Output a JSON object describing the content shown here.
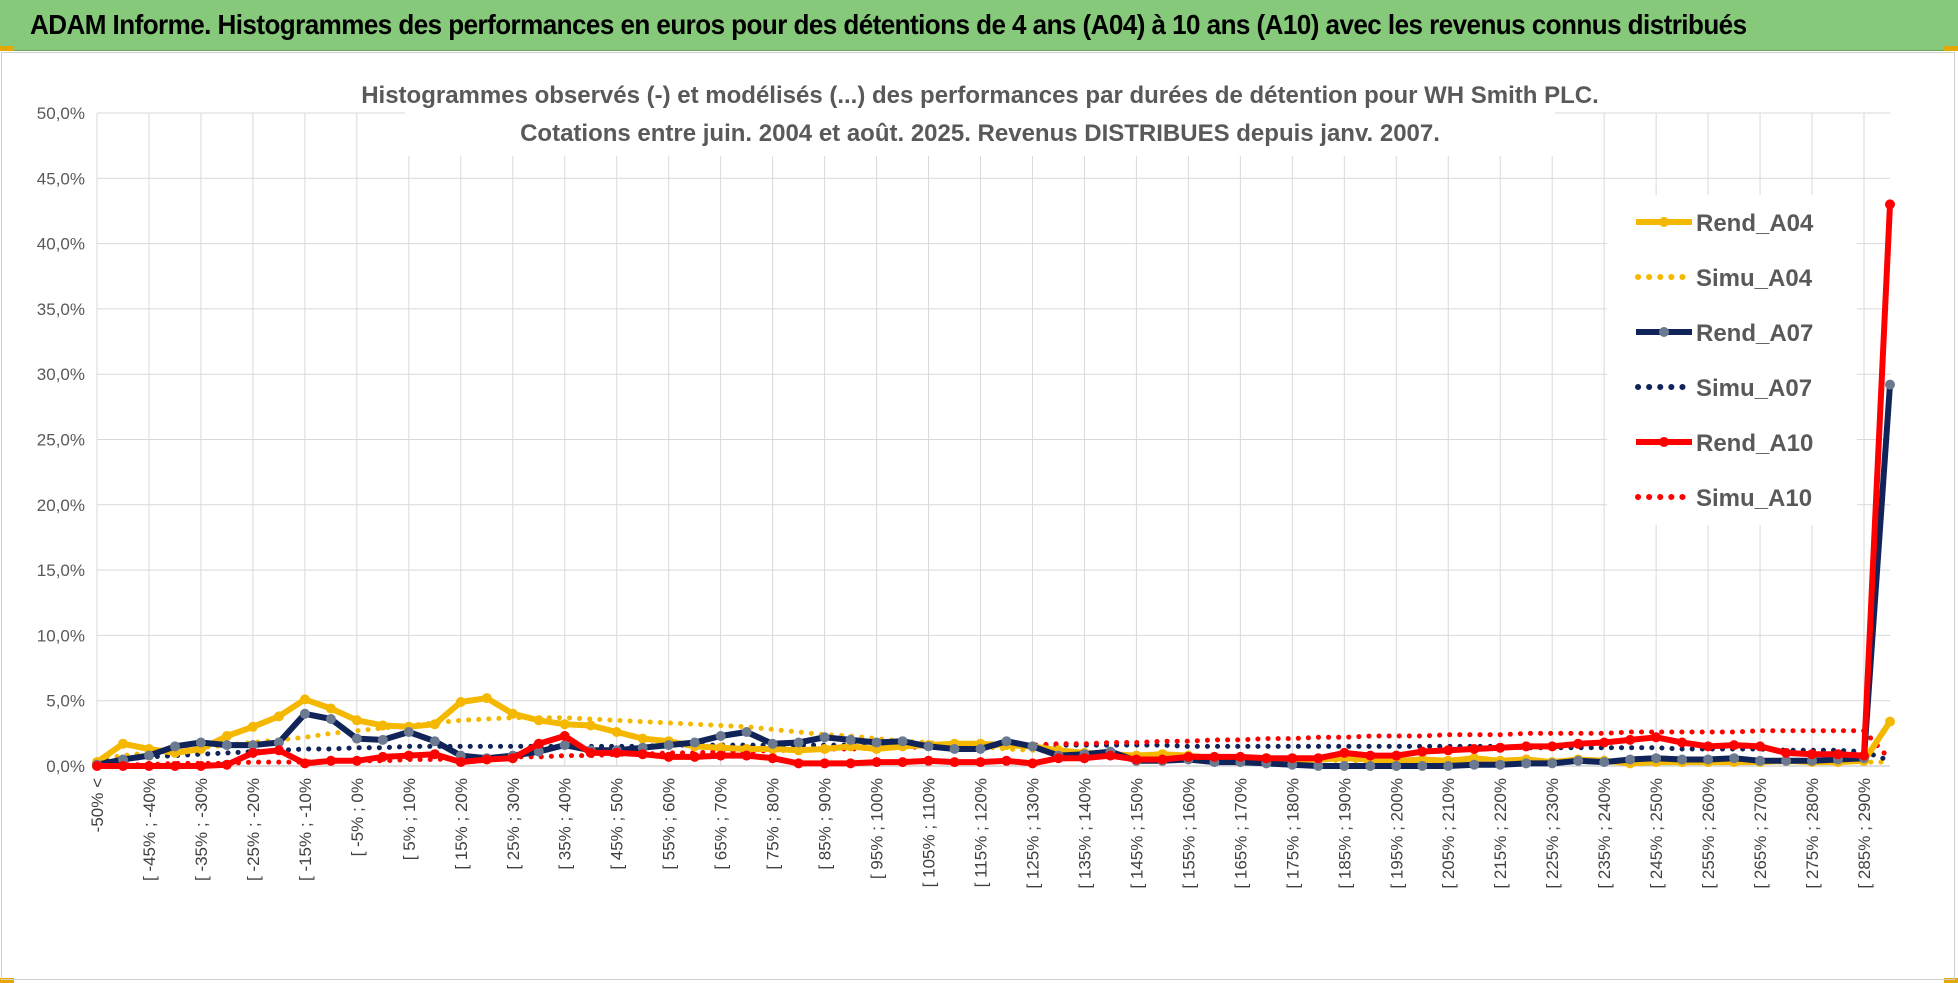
{
  "header": {
    "title": "ADAM Informe. Histogrammes des performances en euros pour des détentions de 4 ans (A04) à 10 ans (A10) avec les revenus connus distribués"
  },
  "colors": {
    "header_bg": "#86c97a",
    "A04": "#f5b800",
    "A07": "#10245a",
    "A07_marker": "#6b7a91",
    "A10": "#ff0000"
  },
  "chart_data": {
    "type": "line",
    "title_lines": [
      "Histogrammes observés (-) et modélisés (...) des performances par durées de détention pour WH Smith PLC.",
      "Cotations entre juin. 2004 et août. 2025. Revenus DISTRIBUES depuis janv. 2007."
    ],
    "ylim": [
      0,
      50
    ],
    "y_ticks": [
      "0,0%",
      "5,0%",
      "10,0%",
      "15,0%",
      "20,0%",
      "25,0%",
      "30,0%",
      "35,0%",
      "40,0%",
      "45,0%",
      "50,0%"
    ],
    "x_labels": [
      "-50% <",
      "[ -45% ; -40%",
      "[ -35% ; -30%",
      "[ -25% ; -20%",
      "[ -15% ; -10%",
      "[ -5% ; 0%",
      "[ 5% ; 10%",
      "[ 15% ; 20%",
      "[ 25% ; 30%",
      "[ 35% ; 40%",
      "[ 45% ; 50%",
      "[ 55% ; 60%",
      "[ 65% ; 70%",
      "[ 75% ; 80%",
      "[ 85% ; 90%",
      "[ 95% ; 100%",
      "[ 105% ; 110%",
      "[ 115% ; 120%",
      "[ 125% ; 130%",
      "[ 135% ; 140%",
      "[ 145% ; 150%",
      "[ 155% ; 160%",
      "[ 165% ; 170%",
      "[ 175% ; 180%",
      "[ 185% ; 190%",
      "[ 195% ; 200%",
      "[ 205% ; 210%",
      "[ 215% ; 220%",
      "[ 225% ; 230%",
      "[ 235% ; 240%",
      "[ 245% ; 250%",
      "[ 255% ; 260%",
      "[ 265% ; 270%",
      "[ 275% ; 280%",
      "[ 285% ; 290%"
    ],
    "n_points": 70,
    "grid": true,
    "legend_position": "right",
    "series": [
      {
        "name": "Rend_A04",
        "style": "solid-marker",
        "color": "#f5b800",
        "values": [
          0.3,
          1.7,
          1.3,
          1.0,
          1.3,
          2.3,
          3.0,
          3.8,
          5.1,
          4.4,
          3.5,
          3.1,
          3.0,
          3.2,
          4.9,
          5.2,
          4.0,
          3.5,
          3.2,
          3.1,
          2.6,
          2.1,
          1.9,
          1.5,
          1.4,
          1.3,
          1.3,
          1.2,
          1.3,
          1.5,
          1.3,
          1.5,
          1.6,
          1.7,
          1.7,
          1.6,
          1.5,
          1.2,
          1.0,
          0.9,
          0.8,
          0.9,
          0.8,
          0.6,
          0.5,
          0.6,
          0.5,
          0.5,
          0.6,
          0.5,
          0.4,
          0.5,
          0.4,
          0.6,
          0.4,
          0.5,
          0.3,
          0.5,
          0.4,
          0.2,
          0.3,
          0.3,
          0.3,
          0.3,
          0.3,
          0.4,
          0.3,
          0.3,
          0.4,
          3.4
        ]
      },
      {
        "name": "Simu_A04",
        "style": "dotted",
        "color": "#f5b800",
        "values": [
          0.5,
          0.8,
          1.0,
          1.2,
          1.4,
          1.6,
          1.8,
          2.0,
          2.2,
          2.5,
          2.7,
          2.9,
          3.1,
          3.3,
          3.5,
          3.6,
          3.7,
          3.7,
          3.7,
          3.6,
          3.5,
          3.4,
          3.3,
          3.2,
          3.1,
          3.0,
          2.8,
          2.6,
          2.4,
          2.3,
          2.1,
          1.9,
          1.8,
          1.6,
          1.5,
          1.3,
          1.2,
          1.1,
          1.0,
          0.9,
          0.8,
          0.7,
          0.7,
          0.6,
          0.6,
          0.5,
          0.5,
          0.5,
          0.4,
          0.4,
          0.4,
          0.4,
          0.4,
          0.3,
          0.3,
          0.3,
          0.3,
          0.3,
          0.3,
          0.3,
          0.3,
          0.3,
          0.3,
          0.3,
          0.3,
          0.3,
          0.3,
          0.3,
          0.3,
          0.3
        ]
      },
      {
        "name": "Rend_A07",
        "style": "solid-marker",
        "color": "#10245a",
        "values": [
          0.1,
          0.5,
          0.8,
          1.5,
          1.8,
          1.6,
          1.6,
          1.8,
          4.0,
          3.6,
          2.1,
          2.0,
          2.6,
          1.9,
          0.8,
          0.6,
          0.8,
          1.1,
          1.6,
          1.2,
          1.2,
          1.4,
          1.6,
          1.8,
          2.3,
          2.6,
          1.7,
          1.8,
          2.2,
          2.0,
          1.8,
          1.9,
          1.5,
          1.3,
          1.3,
          1.9,
          1.5,
          0.8,
          0.9,
          1.1,
          0.4,
          0.4,
          0.5,
          0.3,
          0.3,
          0.2,
          0.1,
          0.0,
          0.0,
          0.0,
          0.0,
          0.0,
          0.0,
          0.1,
          0.1,
          0.2,
          0.2,
          0.4,
          0.3,
          0.5,
          0.6,
          0.5,
          0.5,
          0.6,
          0.4,
          0.4,
          0.4,
          0.5,
          0.6,
          29.2
        ]
      },
      {
        "name": "Simu_A07",
        "style": "dotted",
        "color": "#10245a",
        "values": [
          0.3,
          0.5,
          0.7,
          0.8,
          0.9,
          1.0,
          1.1,
          1.2,
          1.3,
          1.3,
          1.4,
          1.4,
          1.5,
          1.5,
          1.5,
          1.5,
          1.5,
          1.5,
          1.5,
          1.5,
          1.5,
          1.5,
          1.6,
          1.6,
          1.6,
          1.6,
          1.6,
          1.6,
          1.6,
          1.6,
          1.6,
          1.6,
          1.6,
          1.6,
          1.6,
          1.6,
          1.6,
          1.6,
          1.6,
          1.6,
          1.6,
          1.6,
          1.5,
          1.5,
          1.5,
          1.5,
          1.5,
          1.5,
          1.5,
          1.5,
          1.5,
          1.5,
          1.5,
          1.5,
          1.5,
          1.4,
          1.4,
          1.4,
          1.4,
          1.4,
          1.4,
          1.3,
          1.3,
          1.3,
          1.3,
          1.2,
          1.2,
          1.2,
          1.1,
          0.4
        ]
      },
      {
        "name": "Rend_A10",
        "style": "solid-marker",
        "color": "#ff0000",
        "values": [
          0.0,
          0.0,
          0.0,
          0.0,
          0.0,
          0.1,
          1.0,
          1.2,
          0.2,
          0.4,
          0.4,
          0.7,
          0.8,
          0.9,
          0.3,
          0.5,
          0.6,
          1.7,
          2.3,
          1.0,
          1.0,
          0.9,
          0.7,
          0.7,
          0.8,
          0.8,
          0.6,
          0.2,
          0.2,
          0.2,
          0.3,
          0.3,
          0.4,
          0.3,
          0.3,
          0.4,
          0.2,
          0.6,
          0.6,
          0.8,
          0.5,
          0.5,
          0.7,
          0.7,
          0.7,
          0.6,
          0.6,
          0.6,
          1.0,
          0.8,
          0.8,
          1.1,
          1.2,
          1.3,
          1.4,
          1.5,
          1.5,
          1.7,
          1.8,
          2.0,
          2.2,
          1.8,
          1.5,
          1.6,
          1.5,
          1.0,
          0.9,
          0.9,
          0.8,
          43.0
        ]
      },
      {
        "name": "Simu_A10",
        "style": "dotted",
        "color": "#ff0000",
        "values": [
          0.1,
          0.1,
          0.1,
          0.2,
          0.2,
          0.2,
          0.3,
          0.3,
          0.3,
          0.4,
          0.4,
          0.4,
          0.5,
          0.5,
          0.6,
          0.6,
          0.7,
          0.7,
          0.8,
          0.8,
          0.9,
          0.9,
          1.0,
          1.0,
          1.1,
          1.1,
          1.2,
          1.2,
          1.3,
          1.3,
          1.4,
          1.4,
          1.5,
          1.5,
          1.5,
          1.6,
          1.6,
          1.7,
          1.7,
          1.8,
          1.8,
          1.9,
          1.9,
          2.0,
          2.0,
          2.1,
          2.1,
          2.2,
          2.2,
          2.3,
          2.3,
          2.3,
          2.4,
          2.4,
          2.4,
          2.5,
          2.5,
          2.5,
          2.5,
          2.6,
          2.6,
          2.6,
          2.6,
          2.6,
          2.7,
          2.7,
          2.7,
          2.7,
          2.7,
          0.5
        ]
      }
    ]
  }
}
